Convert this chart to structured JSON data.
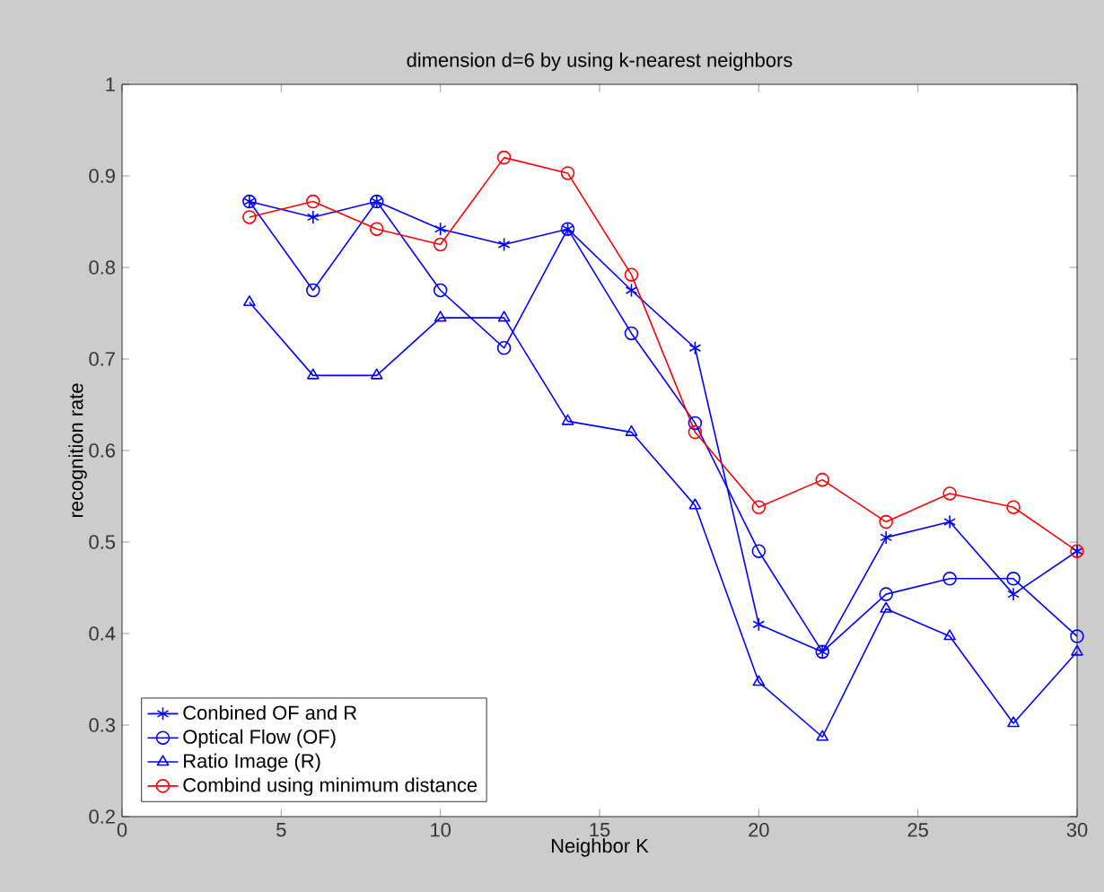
{
  "chart_data": {
    "type": "line",
    "title": "dimension d=6 by using k-nearest neighbors",
    "xlabel": "Neighbor K",
    "ylabel": "recognition rate",
    "x": [
      4,
      6,
      8,
      10,
      12,
      14,
      16,
      18,
      20,
      22,
      24,
      26,
      28,
      30
    ],
    "series": [
      {
        "name": "Conbined OF and R",
        "color": "#0000ff",
        "marker": "cross",
        "values": [
          0.872,
          0.855,
          0.872,
          0.842,
          0.825,
          0.842,
          0.775,
          0.712,
          0.41,
          0.38,
          0.505,
          0.522,
          0.443,
          0.49
        ]
      },
      {
        "name": "Optical Flow (OF)",
        "color": "#0000ff",
        "marker": "circle",
        "values": [
          0.872,
          0.775,
          0.872,
          0.775,
          0.712,
          0.842,
          0.728,
          0.63,
          0.49,
          0.38,
          0.443,
          0.46,
          0.46,
          0.397
        ]
      },
      {
        "name": "Ratio Image (R)",
        "color": "#0000ff",
        "marker": "triangle",
        "values": [
          0.762,
          0.682,
          0.682,
          0.745,
          0.745,
          0.632,
          0.62,
          0.54,
          0.347,
          0.287,
          0.427,
          0.397,
          0.302,
          0.38
        ]
      },
      {
        "name": "Combind using minimum distance",
        "color": "#ff0000",
        "marker": "circle",
        "values": [
          0.855,
          0.872,
          0.842,
          0.825,
          0.92,
          0.903,
          0.792,
          0.62,
          0.538,
          0.568,
          0.522,
          0.553,
          0.538,
          0.49
        ]
      }
    ],
    "xlim": [
      0,
      30
    ],
    "xticks": [
      0,
      5,
      10,
      15,
      20,
      25,
      30
    ],
    "ylim": [
      0.2,
      1
    ],
    "yticks": [
      {
        "value": 0.2,
        "label": "0.2"
      },
      {
        "value": 0.3,
        "label": "0.3"
      },
      {
        "value": 0.4,
        "label": "0.4"
      },
      {
        "value": 0.5,
        "label": "0.5"
      },
      {
        "value": 0.6,
        "label": "0.6"
      },
      {
        "value": 0.7,
        "label": "0.7"
      },
      {
        "value": 0.8,
        "label": "0.8"
      },
      {
        "value": 0.9,
        "label": "0.9"
      },
      {
        "value": 1,
        "label": "1"
      }
    ],
    "legend": "bottom left",
    "grid": false,
    "line_style": "solid"
  }
}
